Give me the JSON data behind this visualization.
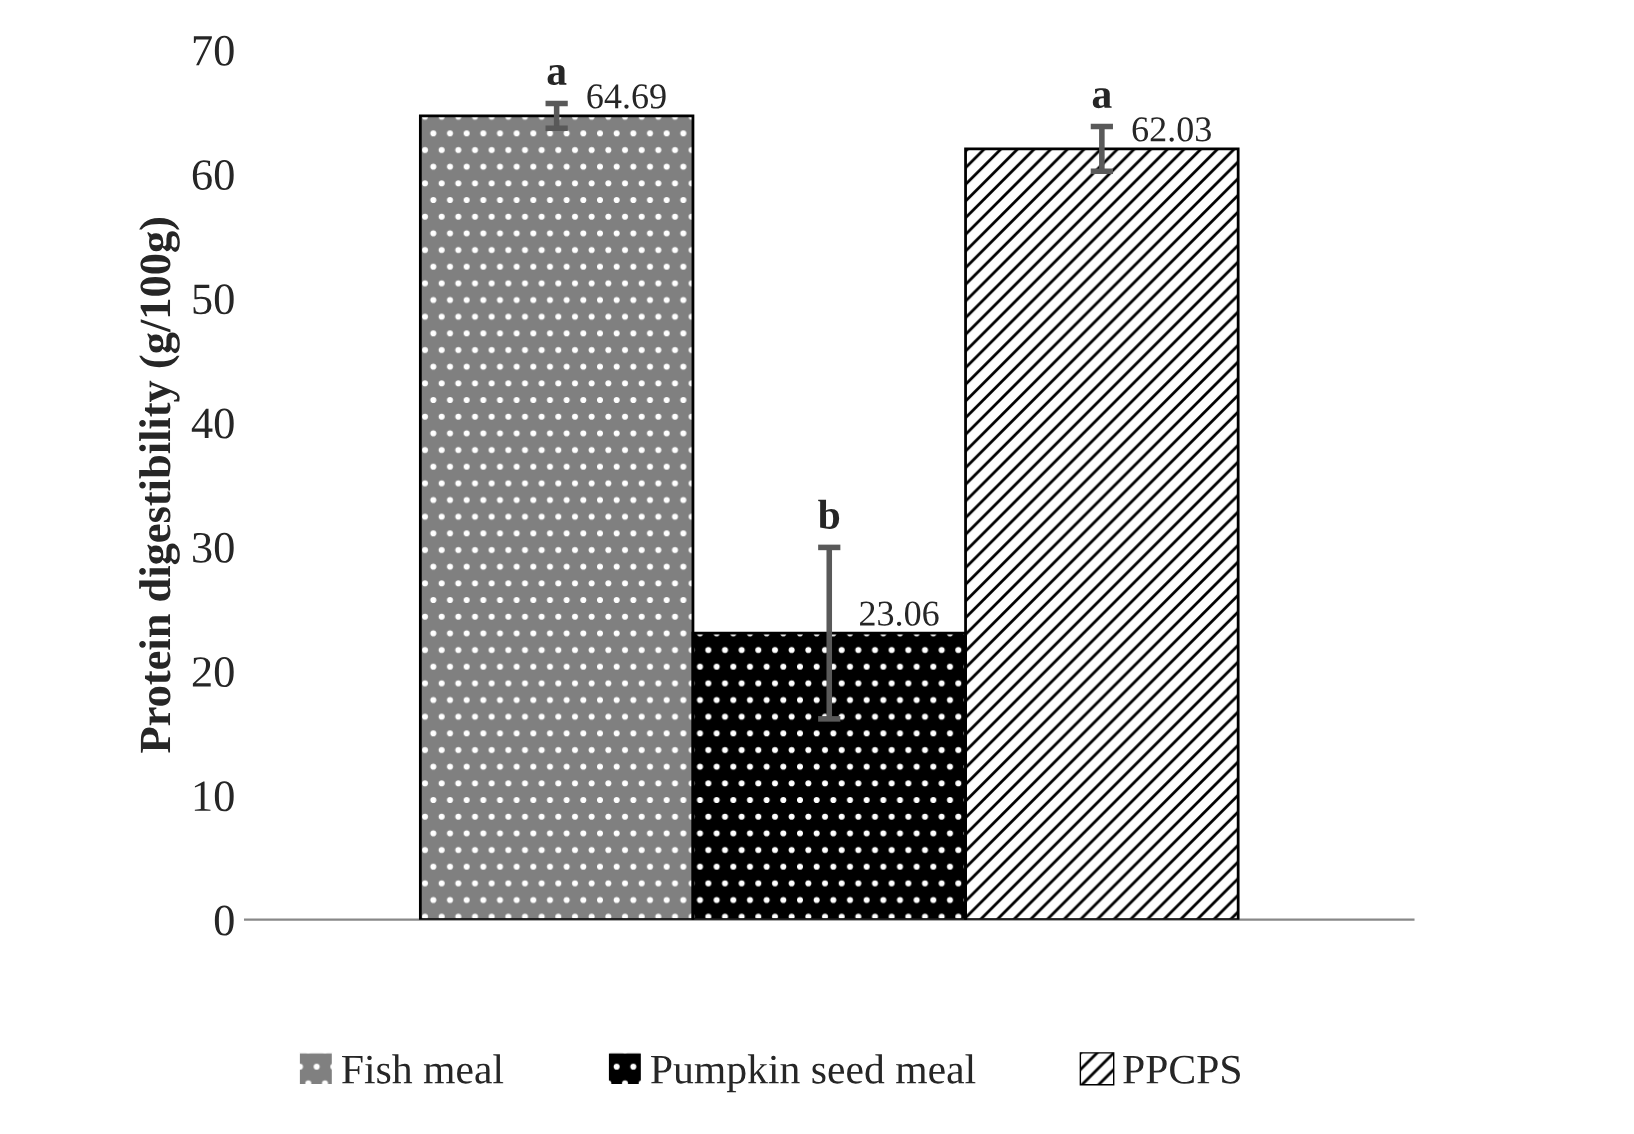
{
  "chart_data": {
    "type": "bar",
    "ylabel": "Protein digestibility (g/100g)",
    "categories": [
      null
    ],
    "series": [
      {
        "name": "Fish meal",
        "color": "#808080",
        "values": [
          64.69
        ],
        "errors": [
          1.0
        ]
      },
      {
        "name": "Pumpkin seed meal",
        "color": "#000000",
        "values": [
          23.06
        ],
        "errors": [
          6.9
        ]
      },
      {
        "name": "PPCPS",
        "color": "#ffffff",
        "values": [
          62.03
        ],
        "errors": [
          1.8
        ]
      }
    ],
    "annotations": [
      "a",
      "b",
      "a"
    ],
    "ylim": [
      0,
      70
    ],
    "yticks": [
      0,
      10,
      20,
      30,
      40,
      50,
      60,
      70
    ],
    "data_labels": true,
    "legend": "bottom",
    "grid": false
  }
}
